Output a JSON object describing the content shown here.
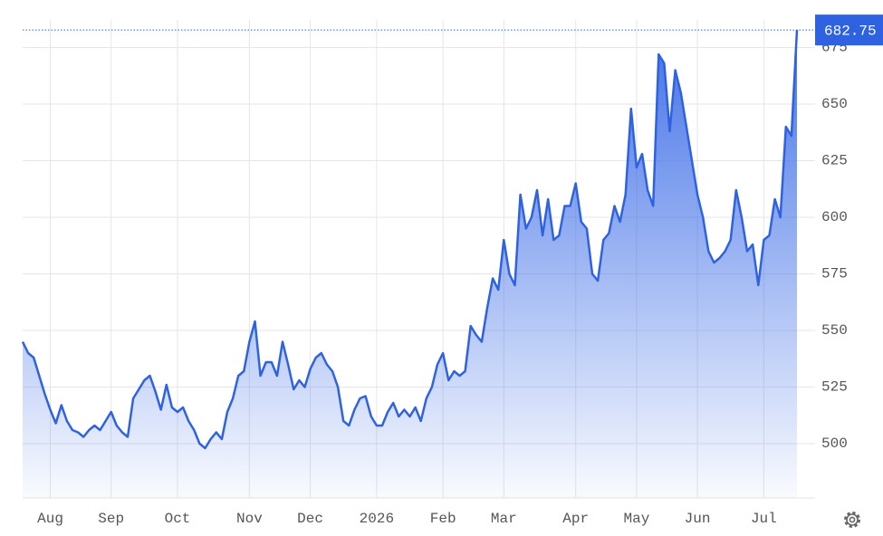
{
  "chart_data": {
    "type": "area",
    "categories": [
      null,
      null,
      null,
      null,
      null,
      "Aug",
      null,
      null,
      null,
      null,
      null,
      null,
      null,
      null,
      null,
      null,
      "Sep",
      null,
      null,
      null,
      null,
      null,
      null,
      null,
      null,
      null,
      null,
      null,
      "Oct",
      null,
      null,
      null,
      null,
      null,
      null,
      null,
      null,
      null,
      null,
      null,
      null,
      "Nov",
      null,
      null,
      null,
      null,
      null,
      null,
      null,
      null,
      null,
      null,
      "Dec",
      null,
      null,
      null,
      null,
      null,
      null,
      null,
      null,
      null,
      null,
      null,
      "2026",
      null,
      null,
      null,
      null,
      null,
      null,
      null,
      null,
      null,
      null,
      null,
      "Feb",
      null,
      null,
      null,
      null,
      null,
      null,
      null,
      null,
      null,
      null,
      "Mar",
      null,
      null,
      null,
      null,
      null,
      null,
      null,
      null,
      null,
      null,
      null,
      null,
      "Apr",
      null,
      null,
      null,
      null,
      null,
      null,
      null,
      null,
      null,
      null,
      "May",
      null,
      null,
      null,
      null,
      null,
      null,
      null,
      null,
      null,
      null,
      "Jun",
      null,
      null,
      null,
      null,
      null,
      null,
      null,
      null,
      null,
      null,
      null,
      "Jul",
      null,
      null,
      null,
      null,
      null,
      null
    ],
    "values": [
      545,
      540,
      538,
      530,
      522,
      515,
      509,
      517,
      510,
      506,
      505,
      503,
      506,
      508,
      506,
      510,
      514,
      508,
      505,
      503,
      520,
      524,
      528,
      530,
      523,
      515,
      526,
      516,
      514,
      516,
      510,
      506,
      500,
      498,
      502,
      505,
      502,
      514,
      520,
      530,
      532,
      545,
      554,
      530,
      536,
      536,
      530,
      545,
      535,
      524,
      528,
      525,
      533,
      538,
      540,
      535,
      532,
      525,
      510,
      508,
      515,
      520,
      521,
      512,
      508,
      508,
      514,
      518,
      512,
      515,
      512,
      516,
      510,
      520,
      525,
      535,
      540,
      528,
      532,
      530,
      532,
      552,
      548,
      545,
      560,
      573,
      568,
      590,
      575,
      570,
      610,
      595,
      600,
      612,
      592,
      608,
      590,
      592,
      605,
      605,
      615,
      598,
      595,
      575,
      572,
      590,
      593,
      605,
      598,
      610,
      648,
      622,
      628,
      612,
      605,
      672,
      668,
      638,
      665,
      655,
      640,
      625,
      610,
      600,
      585,
      580,
      582,
      585,
      590,
      612,
      600,
      585,
      588,
      570,
      590,
      592,
      608,
      600,
      640,
      636,
      682.75
    ],
    "color": "#2f62e0",
    "ylim": [
      476,
      684
    ],
    "yticks": [
      500,
      525,
      550,
      575,
      600,
      625,
      650,
      675
    ],
    "grid": true
  }
}
